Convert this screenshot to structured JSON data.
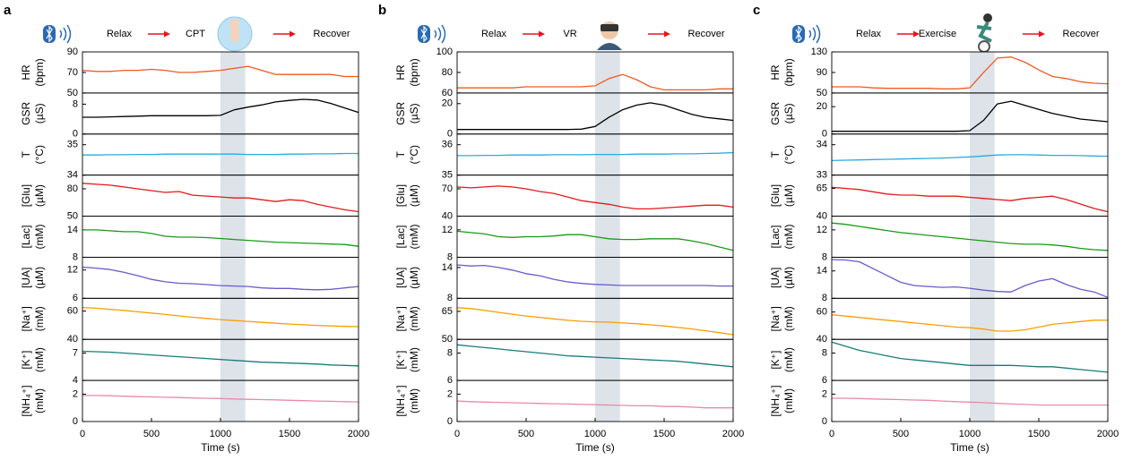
{
  "chart_data": [
    {
      "type": "line",
      "panel": "a",
      "steps": [
        "Relax",
        "CPT",
        "Recover"
      ],
      "xlabel": "Time (s)",
      "xlim": [
        0,
        2000
      ],
      "xticks": [
        0,
        500,
        1000,
        1500,
        2000
      ],
      "shaded_x": [
        1000,
        1180
      ],
      "x": [
        0,
        100,
        200,
        300,
        400,
        500,
        600,
        700,
        800,
        900,
        1000,
        1100,
        1200,
        1300,
        1400,
        1500,
        1600,
        1700,
        1800,
        1900,
        2000
      ],
      "subplots": [
        {
          "ylabel": [
            "HR",
            "(bpm)"
          ],
          "ylim": [
            50,
            90
          ],
          "yticks": [
            50,
            70,
            90
          ],
          "color": "#f15a22",
          "values": [
            72,
            71,
            71,
            72,
            72,
            73,
            72,
            70,
            70,
            71,
            72,
            74,
            76,
            72,
            68,
            68,
            68,
            68,
            68,
            66,
            66
          ]
        },
        {
          "ylabel": [
            "GSR",
            "(µS)"
          ],
          "ylim": [
            0,
            11
          ],
          "yticks": [
            0,
            8
          ],
          "color": "#000000",
          "values": [
            4.5,
            4.5,
            4.6,
            4.7,
            4.8,
            4.9,
            4.9,
            4.9,
            4.9,
            4.9,
            5.0,
            6.5,
            7.2,
            7.8,
            8.6,
            9.0,
            9.3,
            9.1,
            8.2,
            7.0,
            5.8
          ]
        },
        {
          "ylabel": [
            "T",
            "(°C)"
          ],
          "ylim": [
            34,
            35.35
          ],
          "yticks": [
            34,
            35
          ],
          "color": "#29abe2",
          "values": [
            34.66,
            34.66,
            34.67,
            34.67,
            34.68,
            34.68,
            34.69,
            34.69,
            34.69,
            34.69,
            34.69,
            34.69,
            34.68,
            34.68,
            34.68,
            34.69,
            34.69,
            34.7,
            34.7,
            34.71,
            34.71
          ]
        },
        {
          "ylabel": [
            "[Glu]",
            "(µM)"
          ],
          "ylim": [
            50,
            95
          ],
          "yticks": [
            50,
            80
          ],
          "color": "#e31a1c",
          "values": [
            86,
            85,
            84,
            82,
            80,
            78,
            76,
            77,
            73,
            72,
            71,
            70,
            70,
            68,
            66,
            68,
            67,
            63,
            60,
            57,
            55
          ]
        },
        {
          "ylabel": [
            "[Lac]",
            "(mM)"
          ],
          "ylim": [
            8,
            17
          ],
          "yticks": [
            8,
            14
          ],
          "color": "#1a9a1a",
          "values": [
            14,
            14,
            13.8,
            13.6,
            13.6,
            13.2,
            12.6,
            12.4,
            12.4,
            12.3,
            12.1,
            11.9,
            11.7,
            11.5,
            11.3,
            11.2,
            11.1,
            11,
            10.9,
            10.8,
            10.4
          ]
        },
        {
          "ylabel": [
            "[UA]",
            "(µM)"
          ],
          "ylim": [
            6,
            14.7
          ],
          "yticks": [
            6,
            12
          ],
          "color": "#6a5acd",
          "values": [
            12.6,
            12.4,
            12.1,
            11.5,
            10.8,
            10,
            9.5,
            9.2,
            9.1,
            8.9,
            8.7,
            8.6,
            8.5,
            8.2,
            8.1,
            8.1,
            7.9,
            7.8,
            7.9,
            8.2,
            8.5
          ]
        },
        {
          "ylabel": [
            "[Na⁺]",
            "(mM)"
          ],
          "ylim": [
            40,
            69
          ],
          "yticks": [
            40,
            60
          ],
          "color": "#f5a000",
          "values": [
            62.5,
            62,
            61.2,
            60.5,
            59.5,
            58.6,
            57.6,
            56.6,
            55.6,
            54.8,
            54,
            53.3,
            52.7,
            52,
            51.4,
            50.8,
            50.3,
            49.9,
            49.5,
            49.2,
            49
          ]
        },
        {
          "ylabel": [
            "[K⁺]",
            "(mM)"
          ],
          "ylim": [
            4,
            8.5
          ],
          "yticks": [
            4,
            7
          ],
          "color": "#1a7a7a",
          "values": [
            7.2,
            7.15,
            7.1,
            7,
            6.9,
            6.8,
            6.7,
            6.6,
            6.5,
            6.4,
            6.3,
            6.2,
            6.1,
            6.0,
            5.95,
            5.9,
            5.85,
            5.8,
            5.7,
            5.65,
            5.6
          ]
        },
        {
          "ylabel": [
            "[NH₄⁺]",
            "(mM)"
          ],
          "ylim": [
            0,
            3
          ],
          "yticks": [
            0,
            2
          ],
          "color": "#e88aa8",
          "values": [
            1.9,
            1.9,
            1.88,
            1.85,
            1.82,
            1.8,
            1.77,
            1.75,
            1.72,
            1.7,
            1.68,
            1.65,
            1.62,
            1.6,
            1.58,
            1.55,
            1.52,
            1.5,
            1.48,
            1.45,
            1.43
          ]
        }
      ]
    },
    {
      "type": "line",
      "panel": "b",
      "steps": [
        "Relax",
        "VR",
        "Recover"
      ],
      "xlabel": "Time (s)",
      "xlim": [
        0,
        2000
      ],
      "xticks": [
        0,
        500,
        1000,
        1500,
        2000
      ],
      "shaded_x": [
        1000,
        1180
      ],
      "x": [
        0,
        100,
        200,
        300,
        400,
        500,
        600,
        700,
        800,
        900,
        1000,
        1100,
        1200,
        1300,
        1400,
        1500,
        1600,
        1700,
        1800,
        1900,
        2000
      ],
      "subplots": [
        {
          "ylabel": [
            "HR",
            "(bpm)"
          ],
          "ylim": [
            60,
            100
          ],
          "yticks": [
            60,
            80,
            100
          ],
          "color": "#f15a22",
          "values": [
            65,
            65,
            65,
            65,
            65,
            66,
            66,
            66,
            66,
            66,
            67,
            74,
            78,
            73,
            66,
            63,
            63,
            63,
            63,
            64,
            64
          ]
        },
        {
          "ylabel": [
            "GSR",
            "(µS)"
          ],
          "ylim": [
            0,
            27
          ],
          "yticks": [
            0,
            20
          ],
          "color": "#000000",
          "values": [
            3,
            3,
            3,
            3,
            3,
            3,
            3,
            3,
            3,
            3.2,
            5,
            11,
            16,
            19,
            20.5,
            19,
            16,
            13,
            11,
            10,
            9
          ]
        },
        {
          "ylabel": [
            "T",
            "(°C)"
          ],
          "ylim": [
            35,
            36.35
          ],
          "yticks": [
            35,
            36
          ],
          "color": "#29abe2",
          "values": [
            35.64,
            35.64,
            35.65,
            35.65,
            35.66,
            35.66,
            35.66,
            35.67,
            35.67,
            35.67,
            35.68,
            35.68,
            35.68,
            35.69,
            35.69,
            35.69,
            35.7,
            35.7,
            35.71,
            35.72,
            35.74
          ]
        },
        {
          "ylabel": [
            "[Glu]",
            "(µM)"
          ],
          "ylim": [
            40,
            85
          ],
          "yticks": [
            40,
            70
          ],
          "color": "#e31a1c",
          "values": [
            72,
            71,
            72,
            73,
            72,
            70,
            67,
            65,
            61,
            57,
            55,
            53,
            50,
            48,
            48,
            49,
            50,
            51,
            52,
            52,
            50
          ]
        },
        {
          "ylabel": [
            "[Lac]",
            "(mM)"
          ],
          "ylim": [
            8,
            14
          ],
          "yticks": [
            8,
            12
          ],
          "color": "#1a9a1a",
          "values": [
            11.8,
            11.6,
            11.4,
            11,
            10.9,
            11,
            11,
            11.1,
            11.3,
            11.3,
            11,
            10.7,
            10.6,
            10.6,
            10.7,
            10.7,
            10.7,
            10.4,
            10,
            9.5,
            9
          ]
        },
        {
          "ylabel": [
            "[UA]",
            "(µM)"
          ],
          "ylim": [
            8,
            16
          ],
          "yticks": [
            8,
            14
          ],
          "color": "#6a5acd",
          "values": [
            14.5,
            14.3,
            14.4,
            14,
            13.5,
            12.8,
            12.4,
            11.7,
            11.2,
            10.9,
            10.7,
            10.6,
            10.5,
            10.5,
            10.5,
            10.5,
            10.5,
            10.5,
            10.5,
            10.4,
            10.4
          ]
        },
        {
          "ylabel": [
            "[Na⁺]",
            "(mM)"
          ],
          "ylim": [
            50,
            72
          ],
          "yticks": [
            50,
            65
          ],
          "color": "#f5a000",
          "values": [
            67,
            66.5,
            65.5,
            64.5,
            63.5,
            62.5,
            61.8,
            61,
            60.2,
            59.7,
            59.4,
            59.2,
            58.8,
            58.4,
            57.8,
            57.2,
            56.4,
            55.6,
            54.6,
            53.6,
            52.5
          ]
        },
        {
          "ylabel": [
            "[K⁺]",
            "(mM)"
          ],
          "ylim": [
            6,
            9
          ],
          "yticks": [
            6,
            8
          ],
          "color": "#1a7a7a",
          "values": [
            8.6,
            8.5,
            8.4,
            8.3,
            8.2,
            8.1,
            8.0,
            7.9,
            7.8,
            7.75,
            7.7,
            7.65,
            7.6,
            7.55,
            7.5,
            7.45,
            7.4,
            7.3,
            7.2,
            7.1,
            7.0
          ]
        },
        {
          "ylabel": [
            "[NH₄⁺]",
            "(mM)"
          ],
          "ylim": [
            0,
            3
          ],
          "yticks": [
            0,
            2
          ],
          "color": "#e88aa8",
          "values": [
            1.5,
            1.45,
            1.42,
            1.4,
            1.37,
            1.35,
            1.32,
            1.3,
            1.28,
            1.25,
            1.23,
            1.2,
            1.18,
            1.15,
            1.15,
            1.1,
            1.1,
            1.05,
            1.0,
            1.0,
            1.0
          ]
        }
      ]
    },
    {
      "type": "line",
      "panel": "c",
      "steps": [
        "Relax",
        "Exercise",
        "Recover"
      ],
      "xlabel": "Time (s)",
      "xlim": [
        0,
        2000
      ],
      "xticks": [
        0,
        500,
        1000,
        1500,
        2000
      ],
      "shaded_x": [
        1000,
        1180
      ],
      "x": [
        0,
        100,
        200,
        300,
        400,
        500,
        600,
        700,
        800,
        900,
        1000,
        1100,
        1200,
        1300,
        1400,
        1500,
        1600,
        1700,
        1800,
        1900,
        2000
      ],
      "subplots": [
        {
          "ylabel": [
            "HR",
            "(bpm)"
          ],
          "ylim": [
            50,
            130
          ],
          "yticks": [
            50,
            90,
            130
          ],
          "color": "#f15a22",
          "values": [
            62,
            62,
            62,
            60,
            59,
            59,
            59,
            59,
            58,
            58,
            60,
            90,
            118,
            120,
            110,
            95,
            82,
            78,
            72,
            69,
            68
          ]
        },
        {
          "ylabel": [
            "GSR",
            "(µS)"
          ],
          "ylim": [
            0,
            30
          ],
          "yticks": [
            0,
            20
          ],
          "color": "#000000",
          "values": [
            2,
            2,
            2,
            2,
            2,
            2,
            2,
            2,
            2,
            2,
            2.5,
            10,
            22,
            24,
            21,
            18,
            15,
            13,
            11,
            10,
            9
          ]
        },
        {
          "ylabel": [
            "T",
            "(°C)"
          ],
          "ylim": [
            33,
            34.35
          ],
          "yticks": [
            33,
            34
          ],
          "color": "#29abe2",
          "values": [
            33.48,
            33.49,
            33.5,
            33.51,
            33.52,
            33.53,
            33.54,
            33.55,
            33.56,
            33.58,
            33.6,
            33.63,
            33.66,
            33.67,
            33.67,
            33.66,
            33.65,
            33.65,
            33.64,
            33.63,
            33.62
          ]
        },
        {
          "ylabel": [
            "[Glu]",
            "(µM)"
          ],
          "ylim": [
            40,
            77
          ],
          "yticks": [
            40,
            65
          ],
          "color": "#e31a1c",
          "values": [
            66,
            65,
            64,
            62,
            60,
            59,
            59,
            58,
            58,
            58,
            57,
            56,
            55,
            54,
            56,
            57,
            58,
            55,
            51,
            47,
            44
          ]
        },
        {
          "ylabel": [
            "[Lac]",
            "(mM)"
          ],
          "ylim": [
            8,
            14
          ],
          "yticks": [
            8,
            12
          ],
          "color": "#1a9a1a",
          "values": [
            13,
            12.8,
            12.5,
            12.2,
            11.9,
            11.6,
            11.4,
            11.2,
            11,
            10.8,
            10.6,
            10.4,
            10.2,
            10,
            9.9,
            9.9,
            9.8,
            9.6,
            9.3,
            9.1,
            9
          ]
        },
        {
          "ylabel": [
            "[UA]",
            "(µM)"
          ],
          "ylim": [
            8,
            17
          ],
          "yticks": [
            8,
            14
          ],
          "color": "#6a5acd",
          "values": [
            16.5,
            16.4,
            16,
            14.5,
            13,
            11.5,
            10.8,
            10.6,
            10.4,
            10.5,
            10.2,
            9.8,
            9.5,
            9.4,
            10.8,
            11.8,
            12.3,
            11,
            10,
            9.4,
            8.2
          ]
        },
        {
          "ylabel": [
            "[Na⁺]",
            "(mM)"
          ],
          "ylim": [
            40,
            70
          ],
          "yticks": [
            40,
            60
          ],
          "color": "#f5a000",
          "values": [
            58,
            57,
            56,
            55,
            54,
            53,
            52,
            51,
            50,
            49,
            48.5,
            47.5,
            46,
            46,
            47,
            49,
            51,
            52,
            53,
            54,
            54
          ]
        },
        {
          "ylabel": [
            "[K⁺]",
            "(mM)"
          ],
          "ylim": [
            6,
            9
          ],
          "yticks": [
            6,
            8
          ],
          "color": "#1a7a7a",
          "values": [
            8.8,
            8.5,
            8.2,
            8,
            7.8,
            7.6,
            7.5,
            7.4,
            7.3,
            7.2,
            7.1,
            7.1,
            7.1,
            7.1,
            7.05,
            7.0,
            7.0,
            6.9,
            6.8,
            6.7,
            6.6
          ]
        },
        {
          "ylabel": [
            "[NH₄⁺]",
            "(mM)"
          ],
          "ylim": [
            0,
            3
          ],
          "yticks": [
            0,
            2
          ],
          "color": "#e88aa8",
          "values": [
            1.7,
            1.7,
            1.68,
            1.65,
            1.62,
            1.6,
            1.57,
            1.55,
            1.5,
            1.45,
            1.42,
            1.38,
            1.33,
            1.28,
            1.25,
            1.2,
            1.2,
            1.2,
            1.2,
            1.2,
            1.2
          ]
        }
      ]
    }
  ]
}
